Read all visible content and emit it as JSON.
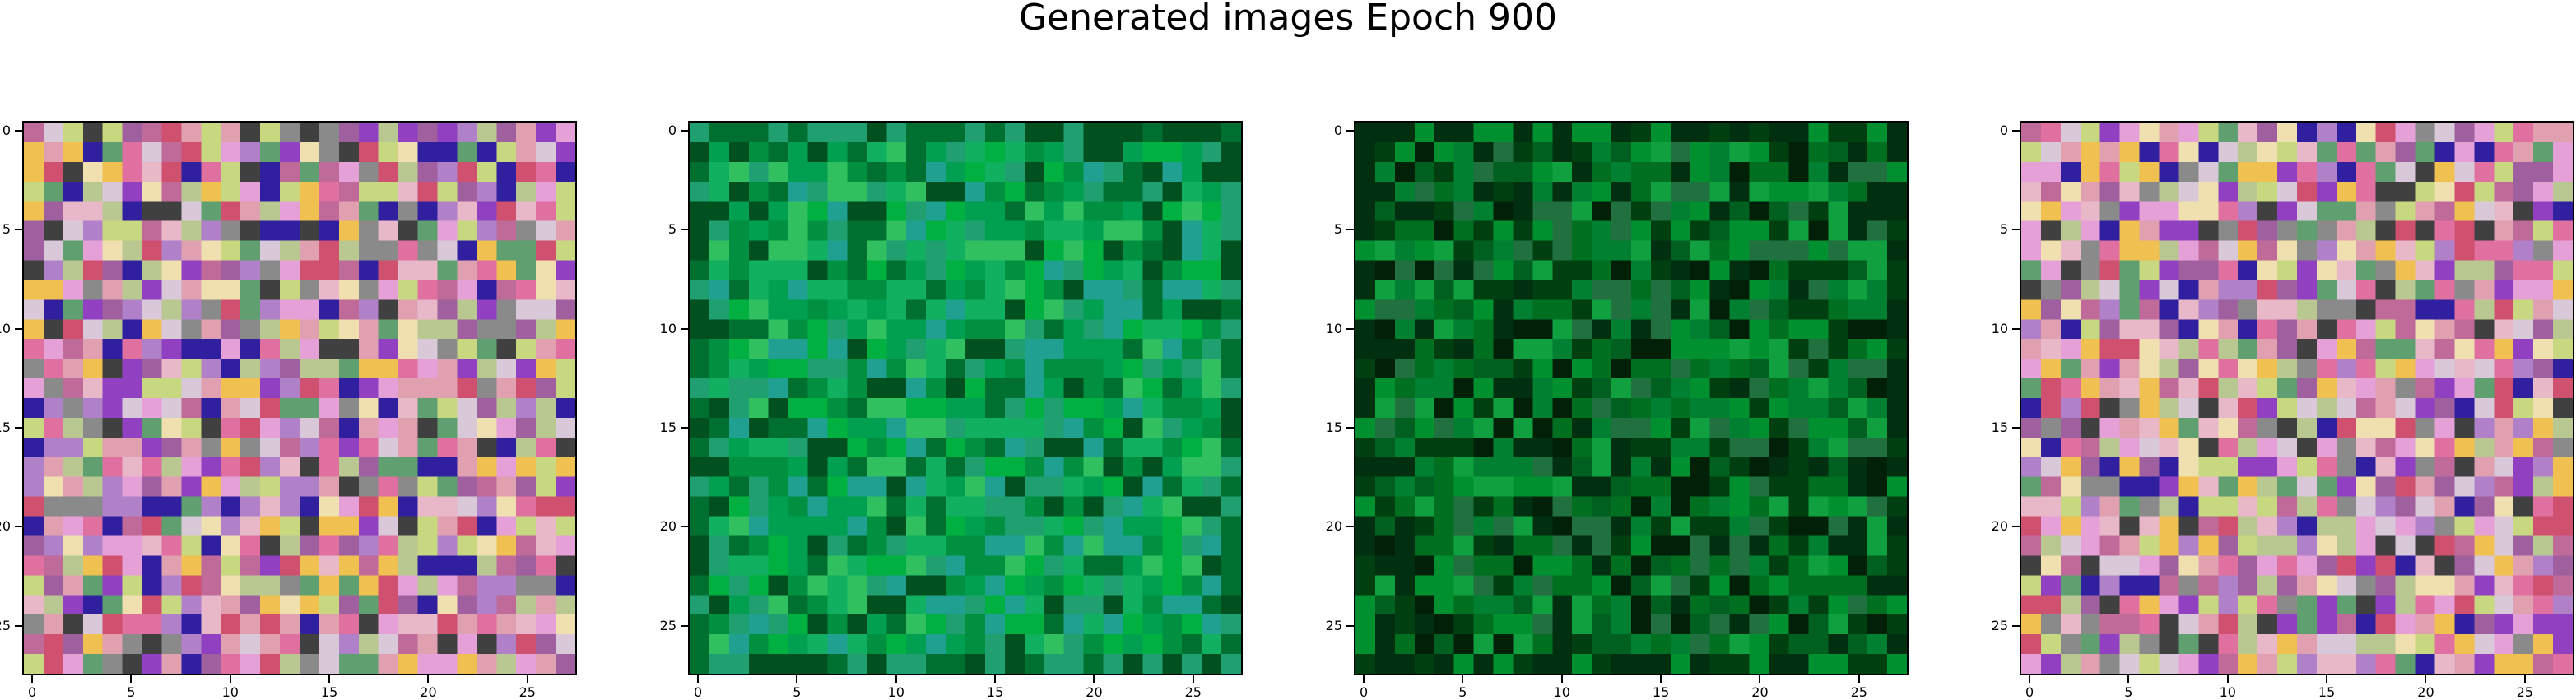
{
  "title": "Generated images Epoch 900",
  "tick_labels": [
    "0",
    "5",
    "10",
    "15",
    "20",
    "25"
  ],
  "panels": [
    {
      "name": "generated-image-1",
      "palette": "colorful"
    },
    {
      "name": "generated-image-2",
      "palette": "green-light"
    },
    {
      "name": "generated-image-3",
      "palette": "green-dark"
    },
    {
      "name": "generated-image-4",
      "palette": "colorful"
    }
  ],
  "colors": {
    "colorful": [
      "#c06a9a",
      "#e8b8c8",
      "#b8c890",
      "#a060a0",
      "#e0a0b0",
      "#d8c8d8",
      "#f0c050",
      "#c8d880",
      "#9040c0",
      "#3020a0",
      "#e070a0",
      "#8a8a8a",
      "#d05070",
      "#f0e0b0",
      "#b080c8",
      "#60a070",
      "#e6a0d8",
      "#404040"
    ],
    "green-light": [
      "#009040",
      "#00a050",
      "#10b060",
      "#20a070",
      "#007030",
      "#005020",
      "#30c060",
      "#00b040",
      "#20a090"
    ],
    "green-dark": [
      "#006020",
      "#007020",
      "#008030",
      "#004010",
      "#009030",
      "#003010",
      "#10a040",
      "#002008",
      "#207040"
    ]
  }
}
